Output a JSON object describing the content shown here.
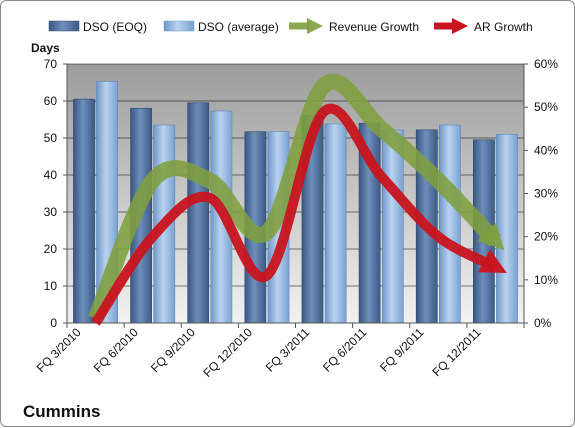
{
  "chart_data": {
    "type": "bar",
    "title": "Cummins",
    "ylabel": "Days",
    "categories": [
      "FQ 3/2010",
      "FQ 6/2010",
      "FQ 9/2010",
      "FQ 12/2010",
      "FQ 3/2011",
      "FQ 6/2011",
      "FQ 9/2011",
      "FQ 12/2011"
    ],
    "ylim": [
      0,
      70
    ],
    "yticks": [
      "0",
      "10",
      "20",
      "30",
      "40",
      "50",
      "60",
      "70"
    ],
    "y2lim": [
      0,
      60
    ],
    "y2ticks": [
      "0%",
      "10%",
      "20%",
      "30%",
      "40%",
      "50%",
      "60%"
    ],
    "grid": true,
    "legend_position": "top",
    "series": [
      {
        "name": "DSO (EOQ)",
        "kind": "bar",
        "axis": "left",
        "color": "#4f6e9a",
        "values": [
          60.5,
          58,
          59.5,
          51.7,
          56,
          54,
          52.2,
          49.5
        ]
      },
      {
        "name": "DSO (average)",
        "kind": "bar",
        "axis": "left",
        "color": "#8db3e2",
        "values": [
          65.3,
          53.5,
          57.3,
          51.7,
          53.8,
          52.2,
          53.5,
          51
        ]
      },
      {
        "name": "Revenue Growth",
        "kind": "line",
        "axis": "right",
        "color": "#77933c",
        "values": [
          1,
          33,
          33,
          21,
          55,
          45,
          33,
          19
        ]
      },
      {
        "name": "AR Growth",
        "kind": "line",
        "axis": "right",
        "color": "#c0141e",
        "values": [
          0,
          20,
          29,
          11,
          49,
          34,
          20,
          13
        ]
      }
    ]
  }
}
